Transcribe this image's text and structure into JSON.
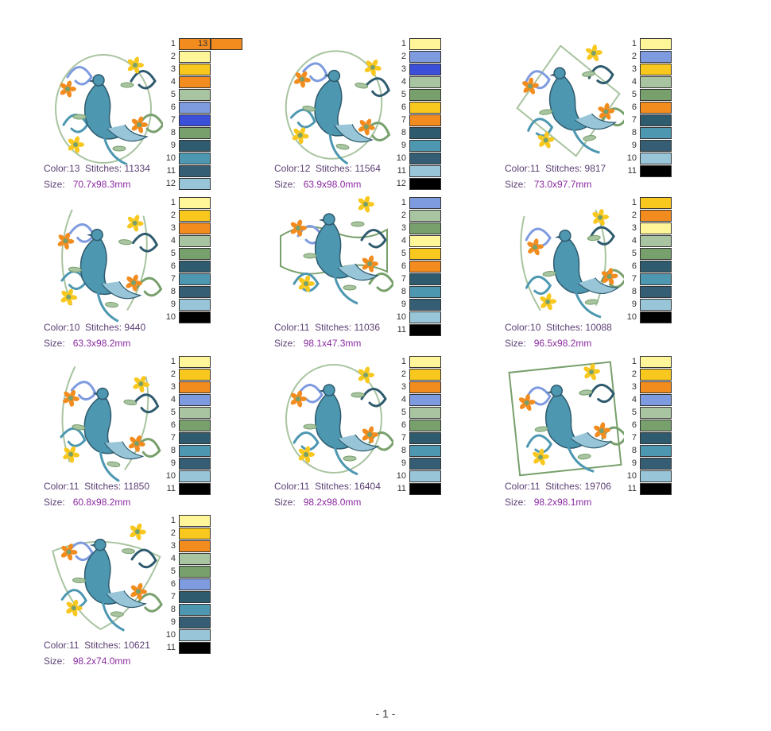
{
  "page": {
    "footer": "- 1 -"
  },
  "palette": {
    "cream": "#fff69a",
    "gold": "#f8c81e",
    "orange": "#f28c1e",
    "sage": "#a8c4a0",
    "lavender": "#7e9be0",
    "blue": "#3b4fd8",
    "green": "#78a06c",
    "teal_dark": "#2f5b6e",
    "teal": "#4d97b1",
    "slate": "#355e74",
    "ice": "#98c6d8",
    "black": "#000000"
  },
  "labels": {
    "color": "Color:",
    "stitches": "Stitches:",
    "size": "Size:"
  },
  "designs": [
    {
      "color": "13",
      "stitches": "11334",
      "size": "70.7x98.3mm",
      "threads": [
        {
          "n": "1",
          "c": "#f28c1e"
        },
        {
          "n": "2",
          "c": "#fff69a"
        },
        {
          "n": "3",
          "c": "#f8c81e"
        },
        {
          "n": "4",
          "c": "#f28c1e"
        },
        {
          "n": "5",
          "c": "#a8c4a0"
        },
        {
          "n": "6",
          "c": "#7e9be0"
        },
        {
          "n": "7",
          "c": "#3b4fd8"
        },
        {
          "n": "8",
          "c": "#78a06c"
        },
        {
          "n": "9",
          "c": "#2f5b6e"
        },
        {
          "n": "10",
          "c": "#4d97b1"
        },
        {
          "n": "11",
          "c": "#355e74"
        },
        {
          "n": "12",
          "c": "#98c6d8"
        }
      ],
      "extra": {
        "n": "13",
        "c": "#f28c1e"
      }
    },
    {
      "color": "12",
      "stitches": "11564",
      "size": "63.9x98.0mm",
      "threads": [
        {
          "n": "1",
          "c": "#fff69a"
        },
        {
          "n": "2",
          "c": "#7e9be0"
        },
        {
          "n": "3",
          "c": "#3b4fd8"
        },
        {
          "n": "4",
          "c": "#a8c4a0"
        },
        {
          "n": "5",
          "c": "#78a06c"
        },
        {
          "n": "6",
          "c": "#f8c81e"
        },
        {
          "n": "7",
          "c": "#f28c1e"
        },
        {
          "n": "8",
          "c": "#2f5b6e"
        },
        {
          "n": "9",
          "c": "#4d97b1"
        },
        {
          "n": "10",
          "c": "#355e74"
        },
        {
          "n": "11",
          "c": "#98c6d8"
        },
        {
          "n": "12",
          "c": "#000000"
        }
      ]
    },
    {
      "color": "11",
      "stitches": "9817",
      "size": "73.0x97.7mm",
      "threads": [
        {
          "n": "1",
          "c": "#fff69a"
        },
        {
          "n": "2",
          "c": "#7e9be0"
        },
        {
          "n": "3",
          "c": "#f8c81e"
        },
        {
          "n": "4",
          "c": "#a8c4a0"
        },
        {
          "n": "5",
          "c": "#78a06c"
        },
        {
          "n": "6",
          "c": "#f28c1e"
        },
        {
          "n": "7",
          "c": "#2f5b6e"
        },
        {
          "n": "8",
          "c": "#4d97b1"
        },
        {
          "n": "9",
          "c": "#355e74"
        },
        {
          "n": "10",
          "c": "#98c6d8"
        },
        {
          "n": "11",
          "c": "#000000"
        }
      ]
    },
    {
      "color": "10",
      "stitches": "9440",
      "size": "63.3x98.2mm",
      "threads": [
        {
          "n": "1",
          "c": "#fff69a"
        },
        {
          "n": "2",
          "c": "#f8c81e"
        },
        {
          "n": "3",
          "c": "#f28c1e"
        },
        {
          "n": "4",
          "c": "#a8c4a0"
        },
        {
          "n": "5",
          "c": "#78a06c"
        },
        {
          "n": "6",
          "c": "#2f5b6e"
        },
        {
          "n": "7",
          "c": "#4d97b1"
        },
        {
          "n": "8",
          "c": "#355e74"
        },
        {
          "n": "9",
          "c": "#98c6d8"
        },
        {
          "n": "10",
          "c": "#000000"
        }
      ]
    },
    {
      "color": "11",
      "stitches": "11036",
      "size": "98.1x47.3mm",
      "threads": [
        {
          "n": "1",
          "c": "#7e9be0"
        },
        {
          "n": "2",
          "c": "#a8c4a0"
        },
        {
          "n": "3",
          "c": "#78a06c"
        },
        {
          "n": "4",
          "c": "#fff69a"
        },
        {
          "n": "5",
          "c": "#f8c81e"
        },
        {
          "n": "6",
          "c": "#f28c1e"
        },
        {
          "n": "7",
          "c": "#2f5b6e"
        },
        {
          "n": "8",
          "c": "#4d97b1"
        },
        {
          "n": "9",
          "c": "#355e74"
        },
        {
          "n": "10",
          "c": "#98c6d8"
        },
        {
          "n": "11",
          "c": "#000000"
        }
      ]
    },
    {
      "color": "10",
      "stitches": "10088",
      "size": "96.5x98.2mm",
      "threads": [
        {
          "n": "1",
          "c": "#f8c81e"
        },
        {
          "n": "2",
          "c": "#f28c1e"
        },
        {
          "n": "3",
          "c": "#fff69a"
        },
        {
          "n": "4",
          "c": "#a8c4a0"
        },
        {
          "n": "5",
          "c": "#78a06c"
        },
        {
          "n": "6",
          "c": "#2f5b6e"
        },
        {
          "n": "7",
          "c": "#4d97b1"
        },
        {
          "n": "8",
          "c": "#355e74"
        },
        {
          "n": "9",
          "c": "#98c6d8"
        },
        {
          "n": "10",
          "c": "#000000"
        }
      ]
    },
    {
      "color": "11",
      "stitches": "11850",
      "size": "60.8x98.2mm",
      "threads": [
        {
          "n": "1",
          "c": "#fff69a"
        },
        {
          "n": "2",
          "c": "#f8c81e"
        },
        {
          "n": "3",
          "c": "#f28c1e"
        },
        {
          "n": "4",
          "c": "#7e9be0"
        },
        {
          "n": "5",
          "c": "#a8c4a0"
        },
        {
          "n": "6",
          "c": "#78a06c"
        },
        {
          "n": "7",
          "c": "#2f5b6e"
        },
        {
          "n": "8",
          "c": "#4d97b1"
        },
        {
          "n": "9",
          "c": "#355e74"
        },
        {
          "n": "10",
          "c": "#98c6d8"
        },
        {
          "n": "11",
          "c": "#000000"
        }
      ]
    },
    {
      "color": "11",
      "stitches": "16404",
      "size": "98.2x98.0mm",
      "threads": [
        {
          "n": "1",
          "c": "#fff69a"
        },
        {
          "n": "2",
          "c": "#f8c81e"
        },
        {
          "n": "3",
          "c": "#f28c1e"
        },
        {
          "n": "4",
          "c": "#7e9be0"
        },
        {
          "n": "5",
          "c": "#a8c4a0"
        },
        {
          "n": "6",
          "c": "#78a06c"
        },
        {
          "n": "7",
          "c": "#2f5b6e"
        },
        {
          "n": "8",
          "c": "#4d97b1"
        },
        {
          "n": "9",
          "c": "#355e74"
        },
        {
          "n": "10",
          "c": "#98c6d8"
        },
        {
          "n": "11",
          "c": "#000000"
        }
      ]
    },
    {
      "color": "11",
      "stitches": "19706",
      "size": "98.2x98.1mm",
      "threads": [
        {
          "n": "1",
          "c": "#fff69a"
        },
        {
          "n": "2",
          "c": "#f8c81e"
        },
        {
          "n": "3",
          "c": "#f28c1e"
        },
        {
          "n": "4",
          "c": "#7e9be0"
        },
        {
          "n": "5",
          "c": "#a8c4a0"
        },
        {
          "n": "6",
          "c": "#78a06c"
        },
        {
          "n": "7",
          "c": "#2f5b6e"
        },
        {
          "n": "8",
          "c": "#4d97b1"
        },
        {
          "n": "9",
          "c": "#355e74"
        },
        {
          "n": "10",
          "c": "#98c6d8"
        },
        {
          "n": "11",
          "c": "#000000"
        }
      ]
    },
    {
      "color": "11",
      "stitches": "10621",
      "size": "98.2x74.0mm",
      "threads": [
        {
          "n": "1",
          "c": "#fff69a"
        },
        {
          "n": "2",
          "c": "#f8c81e"
        },
        {
          "n": "3",
          "c": "#f28c1e"
        },
        {
          "n": "4",
          "c": "#a8c4a0"
        },
        {
          "n": "5",
          "c": "#78a06c"
        },
        {
          "n": "6",
          "c": "#7e9be0"
        },
        {
          "n": "7",
          "c": "#2f5b6e"
        },
        {
          "n": "8",
          "c": "#4d97b1"
        },
        {
          "n": "9",
          "c": "#355e74"
        },
        {
          "n": "10",
          "c": "#98c6d8"
        },
        {
          "n": "11",
          "c": "#000000"
        }
      ]
    }
  ]
}
